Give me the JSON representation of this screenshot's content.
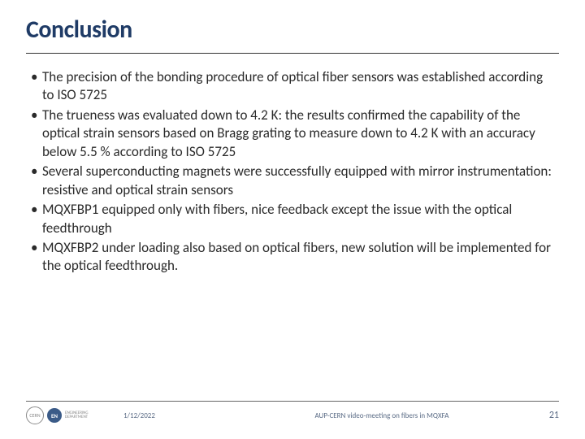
{
  "title": "Conclusion",
  "bullets": [
    "The precision of the bonding procedure of optical fiber sensors was established according to ISO 5725",
    "The trueness was evaluated down to 4.2 K: the results confirmed the capability of the optical strain sensors based on Bragg grating to measure down to 4.2 K with an accuracy below 5.5 % according to ISO 5725",
    "Several superconducting magnets were successfully equipped with mirror instrumentation: resistive and optical strain sensors",
    "MQXFBP1 equipped only with fibers, nice feedback except the issue with the optical feedthrough",
    "MQXFBP2 under loading also based on optical fibers, new solution will be implemented for the optical feedthrough."
  ],
  "footer": {
    "date": "1/12/2022",
    "meeting": "AUP-CERN video-meeting on fibers in MQXFA",
    "page": "21",
    "logos": {
      "cern": "CERN",
      "en": "EN",
      "sub": "ENGINEERING\nDEPARTMENT"
    }
  },
  "colors": {
    "title": "#1f3b66",
    "text": "#2a2a2a",
    "footer_text": "#5a6b85",
    "rule": "#333333"
  }
}
